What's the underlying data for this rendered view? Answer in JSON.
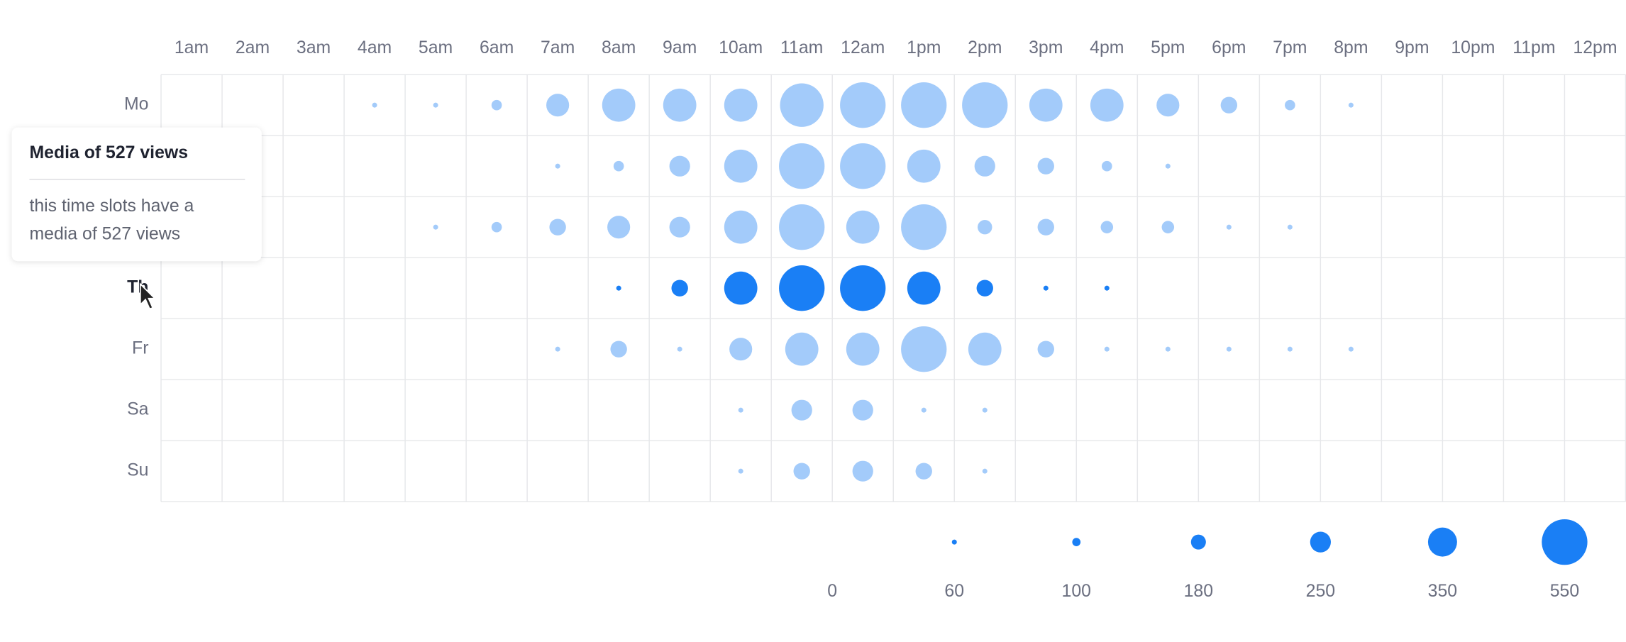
{
  "chart_data": {
    "type": "punchcard",
    "x_categories": [
      "1am",
      "2am",
      "3am",
      "4am",
      "5am",
      "6am",
      "7am",
      "8am",
      "9am",
      "10am",
      "11am",
      "12am",
      "1pm",
      "2pm",
      "3pm",
      "4pm",
      "5pm",
      "6pm",
      "7pm",
      "8pm",
      "9pm",
      "10pm",
      "11pm",
      "12pm"
    ],
    "y_categories": [
      "Mo",
      null,
      null,
      "Th",
      "Fr",
      "Sa",
      "Su"
    ],
    "values": [
      [
        0,
        0,
        0,
        60,
        60,
        125,
        275,
        400,
        400,
        400,
        525,
        550,
        550,
        550,
        400,
        400,
        275,
        200,
        125,
        60,
        0,
        0,
        0,
        0
      ],
      [
        0,
        0,
        0,
        0,
        0,
        0,
        60,
        125,
        250,
        400,
        550,
        550,
        400,
        250,
        200,
        125,
        60,
        0,
        0,
        0,
        0,
        0,
        0,
        0
      ],
      [
        0,
        0,
        0,
        0,
        60,
        125,
        200,
        275,
        250,
        400,
        550,
        400,
        550,
        175,
        200,
        150,
        150,
        60,
        60,
        0,
        0,
        0,
        0,
        0
      ],
      [
        0,
        0,
        0,
        0,
        0,
        0,
        0,
        60,
        200,
        400,
        550,
        550,
        400,
        200,
        60,
        60,
        0,
        0,
        0,
        0,
        0,
        0,
        0,
        0
      ],
      [
        0,
        0,
        0,
        0,
        0,
        0,
        60,
        200,
        60,
        275,
        400,
        400,
        550,
        400,
        200,
        60,
        60,
        60,
        60,
        60,
        0,
        0,
        0,
        0
      ],
      [
        0,
        0,
        0,
        0,
        0,
        0,
        0,
        0,
        0,
        60,
        250,
        250,
        60,
        60,
        0,
        0,
        0,
        0,
        0,
        0,
        0,
        0,
        0,
        0
      ],
      [
        0,
        0,
        0,
        0,
        0,
        0,
        0,
        0,
        0,
        60,
        200,
        250,
        200,
        60,
        0,
        0,
        0,
        0,
        0,
        0,
        0,
        0,
        0,
        0
      ]
    ],
    "color": "#a3cbfa",
    "highlight_color": "#1a7ff5",
    "highlighted_row": "Th",
    "size_legend": [
      0,
      60,
      100,
      180,
      250,
      350,
      550
    ],
    "tooltip": {
      "title": "Media of 527 views",
      "text": "this time slots have a media of 527 views"
    }
  }
}
